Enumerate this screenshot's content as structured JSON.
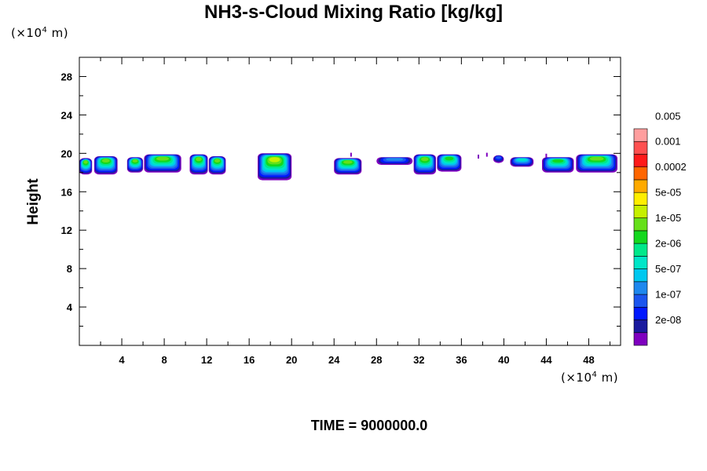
{
  "chart_data": {
    "type": "heatmap",
    "title": "NH3-s-Cloud Mixing Ratio [kg/kg]",
    "xlabel": "",
    "ylabel": "Height",
    "x_unit": {
      "prefix": "(×10",
      "exp": "4",
      "suffix": " m)"
    },
    "y_unit": {
      "prefix": "(×10",
      "exp": "4",
      "suffix": " m)"
    },
    "xlim": [
      0,
      51
    ],
    "ylim": [
      0,
      30
    ],
    "x_ticks": [
      4,
      8,
      12,
      16,
      20,
      24,
      28,
      32,
      36,
      40,
      44,
      48
    ],
    "y_ticks": [
      4,
      8,
      12,
      16,
      20,
      24,
      28
    ],
    "footer": "TIME = 9000000.0",
    "colorbar": {
      "colors": [
        "#7f00bf",
        "#1a1a9e",
        "#0018ff",
        "#1b55ee",
        "#1e88ee",
        "#00c8f0",
        "#00e6c8",
        "#00e88a",
        "#14d81e",
        "#66e01a",
        "#c6f000",
        "#ffee00",
        "#ffaa00",
        "#ff6600",
        "#ff1a1a",
        "#ff5050",
        "#ff9e9e"
      ],
      "labels": [
        "2e-08",
        "1e-07",
        "5e-07",
        "2e-06",
        "1e-05",
        "5e-05",
        "0.0002",
        "0.001",
        "0.005"
      ]
    },
    "cloud_clusters": [
      {
        "x0": 0.0,
        "x1": 1.2,
        "ztop": 19.5,
        "zbot": 17.8,
        "peak": 9
      },
      {
        "x0": 1.4,
        "x1": 3.6,
        "ztop": 19.7,
        "zbot": 17.8,
        "peak": 9
      },
      {
        "x0": 4.5,
        "x1": 6.0,
        "ztop": 19.6,
        "zbot": 18.0,
        "peak": 9
      },
      {
        "x0": 6.1,
        "x1": 9.6,
        "ztop": 19.9,
        "zbot": 18.0,
        "peak": 9
      },
      {
        "x0": 10.4,
        "x1": 12.1,
        "ztop": 19.9,
        "zbot": 17.8,
        "peak": 9
      },
      {
        "x0": 12.2,
        "x1": 13.8,
        "ztop": 19.7,
        "zbot": 17.8,
        "peak": 9
      },
      {
        "x0": 16.8,
        "x1": 20.0,
        "ztop": 20.0,
        "zbot": 17.2,
        "peak": 10
      },
      {
        "x0": 24.0,
        "x1": 26.6,
        "ztop": 19.5,
        "zbot": 17.8,
        "peak": 9
      },
      {
        "x0": 28.0,
        "x1": 31.4,
        "ztop": 19.6,
        "zbot": 18.8,
        "peak": 4
      },
      {
        "x0": 31.5,
        "x1": 33.6,
        "ztop": 19.9,
        "zbot": 17.8,
        "peak": 9
      },
      {
        "x0": 33.7,
        "x1": 36.0,
        "ztop": 19.9,
        "zbot": 18.1,
        "peak": 8
      },
      {
        "x0": 39.0,
        "x1": 40.0,
        "ztop": 19.8,
        "zbot": 19.0,
        "peak": 3
      },
      {
        "x0": 40.6,
        "x1": 42.8,
        "ztop": 19.6,
        "zbot": 18.6,
        "peak": 6
      },
      {
        "x0": 43.6,
        "x1": 46.6,
        "ztop": 19.6,
        "zbot": 18.0,
        "peak": 8
      },
      {
        "x0": 46.8,
        "x1": 50.7,
        "ztop": 19.9,
        "zbot": 18.0,
        "peak": 9
      }
    ],
    "cloud_specks": [
      {
        "x": 25.6,
        "z": 19.9,
        "color": 0
      },
      {
        "x": 37.6,
        "z": 19.7,
        "color": 0
      },
      {
        "x": 38.4,
        "z": 19.9,
        "color": 0
      },
      {
        "x": 44.0,
        "z": 19.8,
        "color": 0
      }
    ]
  }
}
